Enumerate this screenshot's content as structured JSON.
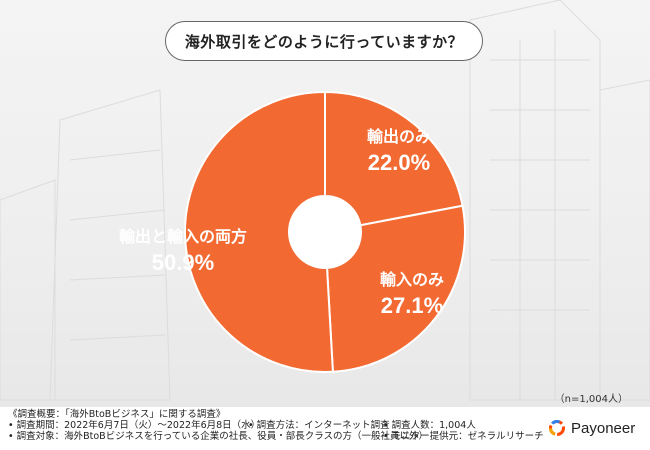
{
  "question": "海外取引をどのように行っていますか？",
  "note": "（n=1,004人）",
  "colors": {
    "slice": "#f26a32",
    "label": "#ffffff",
    "divider": "#ffffff"
  },
  "chart_data": {
    "type": "pie",
    "title": "海外取引をどのように行っていますか？",
    "slices": [
      {
        "label": "輸出のみ",
        "value": 22.0,
        "display": "22.0%"
      },
      {
        "label": "輸入のみ",
        "value": 27.1,
        "display": "27.1%"
      },
      {
        "label": "輸出と輸入の両方",
        "value": 50.9,
        "display": "50.9%"
      }
    ]
  },
  "survey": {
    "heading": "《調査概要：「海外BtoBビジネス」に関する調査》",
    "period": "• 調査期間：2022年6月7日（火）〜2022年6月8日（水）",
    "method": "• 調査方法：インターネット調査",
    "count": "• 調査人数：1,004人",
    "target": "• 調査対象：海外BtoBビジネスを行っている企業の社長、役員・部長クラスの方（一般社員以外）",
    "provider": "• モニター提供元：ゼネラルリサーチ"
  },
  "brand": {
    "name": "Payoneer",
    "icon": "payoneer-logo-icon"
  }
}
